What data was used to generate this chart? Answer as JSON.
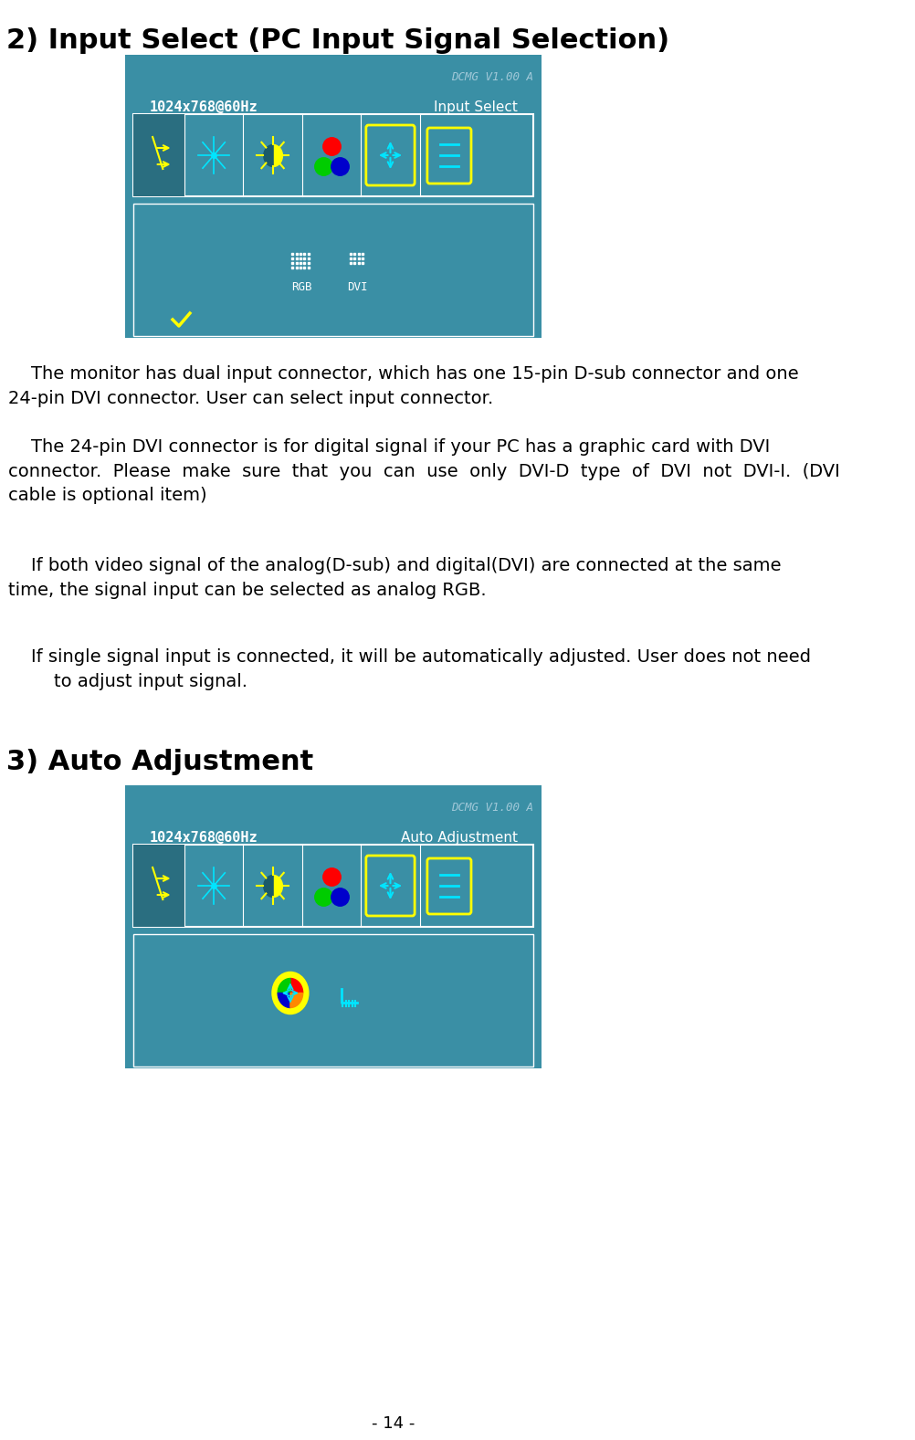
{
  "title1": "2) Input Select (PC Input Signal Selection)",
  "title2": "3) Auto Adjustment",
  "bg_color": "#ffffff",
  "teal_color": "#3d8fa0",
  "teal_dark": "#2e7a8c",
  "screen_bg": "#3a8fa5",
  "yellow": "#ffff00",
  "white": "#ffffff",
  "cyan": "#00e5ff",
  "red": "#ff0000",
  "green": "#00cc00",
  "blue": "#0000cc",
  "page_number": "- 14 -",
  "para1": "    The monitor has dual input connector, which has one 15-pin D-sub connector and one\n24-pin DVI connector. User can select input connector.",
  "para2": "    The 24-pin DVI connector is for digital signal if your PC has a graphic card with DVI\nconnector.  Please  make  sure  that  you  can  use  only  DVI-D  type  of  DVI  not  DVI-I.  (DVI\ncable is optional item)",
  "para3": "    If both video signal of the analog(D-sub) and digital(DVI) are connected at the same\ntime, the signal input can be selected as analog RGB.",
  "para4": "    If single signal input is connected, it will be automatically adjusted. User does not need\n        to adjust input signal.",
  "dcmg_text": "DCMG V1.00 A",
  "resolution_text": "1024x768@60Hz",
  "input_select_label": "Input Select",
  "auto_adj_label": "Auto Adjustment",
  "rgb_label": "RGB",
  "dvi_label": "DVI"
}
